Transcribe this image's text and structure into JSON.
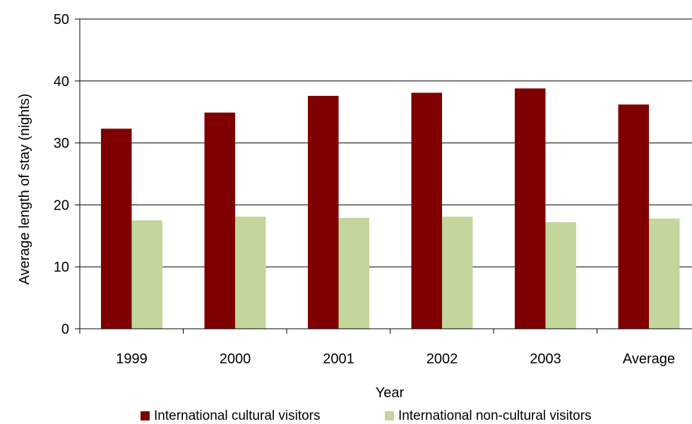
{
  "chart_data": {
    "type": "bar",
    "title": "",
    "xlabel": "Year",
    "ylabel": "Average length of stay (nights)",
    "categories": [
      "1999",
      "2000",
      "2001",
      "2002",
      "2003",
      "Average"
    ],
    "series": [
      {
        "name": "International cultural visitors",
        "color": "#7f0000",
        "values": [
          32.3,
          34.9,
          37.6,
          38.1,
          38.8,
          36.2
        ]
      },
      {
        "name": "International non-cultural visitors",
        "color": "#c3d69b",
        "values": [
          17.5,
          18.1,
          17.9,
          18.1,
          17.2,
          17.8
        ]
      }
    ],
    "ylim": [
      0,
      50
    ],
    "yticks": [
      0,
      10,
      20,
      30,
      40,
      50
    ],
    "grid": true,
    "legend_position": "bottom"
  }
}
